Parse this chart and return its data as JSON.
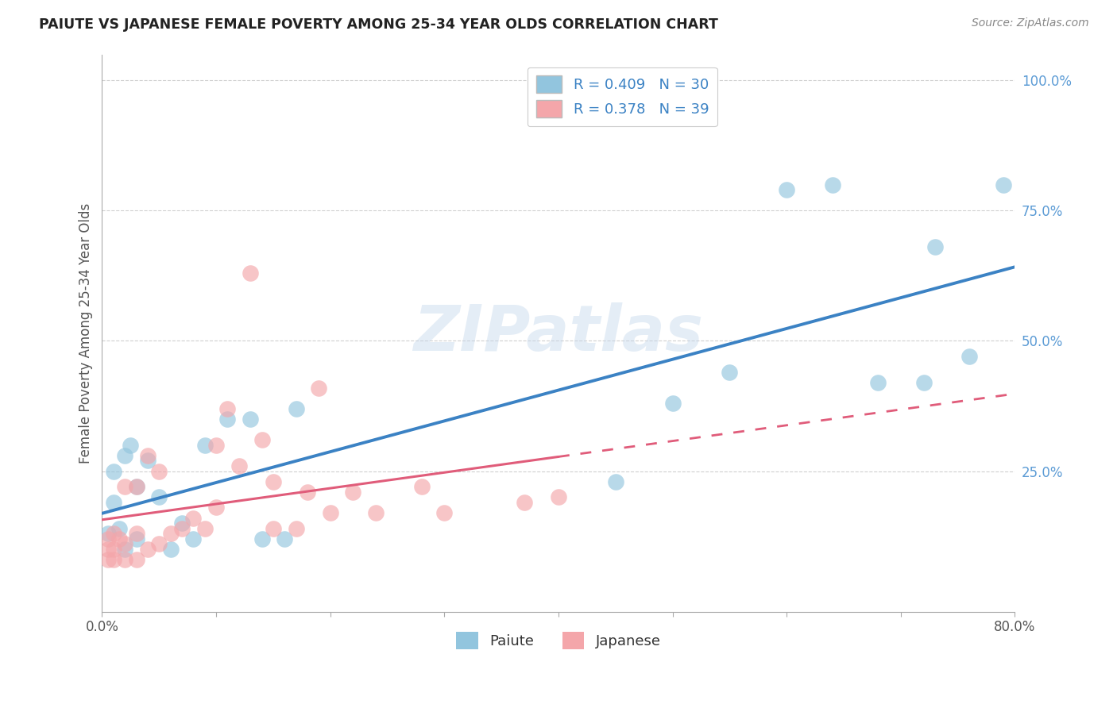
{
  "title": "PAIUTE VS JAPANESE FEMALE POVERTY AMONG 25-34 YEAR OLDS CORRELATION CHART",
  "source": "Source: ZipAtlas.com",
  "ylabel": "Female Poverty Among 25-34 Year Olds",
  "xlim": [
    0.0,
    0.8
  ],
  "ylim": [
    -0.02,
    1.05
  ],
  "paiute_R": 0.409,
  "paiute_N": 30,
  "japanese_R": 0.378,
  "japanese_N": 39,
  "paiute_color": "#92c5de",
  "japanese_color": "#f4a6aa",
  "trendline_paiute_color": "#3b82c4",
  "trendline_japanese_color": "#e05c7a",
  "paiute_x": [
    0.005,
    0.01,
    0.01,
    0.015,
    0.02,
    0.02,
    0.025,
    0.03,
    0.03,
    0.04,
    0.05,
    0.06,
    0.07,
    0.08,
    0.09,
    0.11,
    0.13,
    0.14,
    0.16,
    0.17,
    0.45,
    0.5,
    0.55,
    0.6,
    0.64,
    0.68,
    0.72,
    0.73,
    0.76,
    0.79
  ],
  "paiute_y": [
    0.13,
    0.19,
    0.25,
    0.14,
    0.1,
    0.28,
    0.3,
    0.12,
    0.22,
    0.27,
    0.2,
    0.1,
    0.15,
    0.12,
    0.3,
    0.35,
    0.35,
    0.12,
    0.12,
    0.37,
    0.23,
    0.38,
    0.44,
    0.79,
    0.8,
    0.42,
    0.42,
    0.68,
    0.47,
    0.8
  ],
  "japanese_x": [
    0.005,
    0.005,
    0.005,
    0.01,
    0.01,
    0.01,
    0.015,
    0.02,
    0.02,
    0.02,
    0.03,
    0.03,
    0.03,
    0.04,
    0.04,
    0.05,
    0.05,
    0.06,
    0.07,
    0.08,
    0.09,
    0.1,
    0.1,
    0.11,
    0.12,
    0.13,
    0.14,
    0.15,
    0.15,
    0.17,
    0.18,
    0.19,
    0.2,
    0.22,
    0.24,
    0.28,
    0.3,
    0.37,
    0.4
  ],
  "japanese_y": [
    0.08,
    0.1,
    0.12,
    0.08,
    0.1,
    0.13,
    0.12,
    0.08,
    0.11,
    0.22,
    0.08,
    0.13,
    0.22,
    0.1,
    0.28,
    0.11,
    0.25,
    0.13,
    0.14,
    0.16,
    0.14,
    0.18,
    0.3,
    0.37,
    0.26,
    0.63,
    0.31,
    0.14,
    0.23,
    0.14,
    0.21,
    0.41,
    0.17,
    0.21,
    0.17,
    0.22,
    0.17,
    0.19,
    0.2
  ],
  "watermark": "ZIPatlas",
  "background_color": "#ffffff",
  "grid_color": "#d0d0d0",
  "legend_paiute_label": "R = 0.409   N = 30",
  "legend_japanese_label": "R = 0.378   N = 39"
}
